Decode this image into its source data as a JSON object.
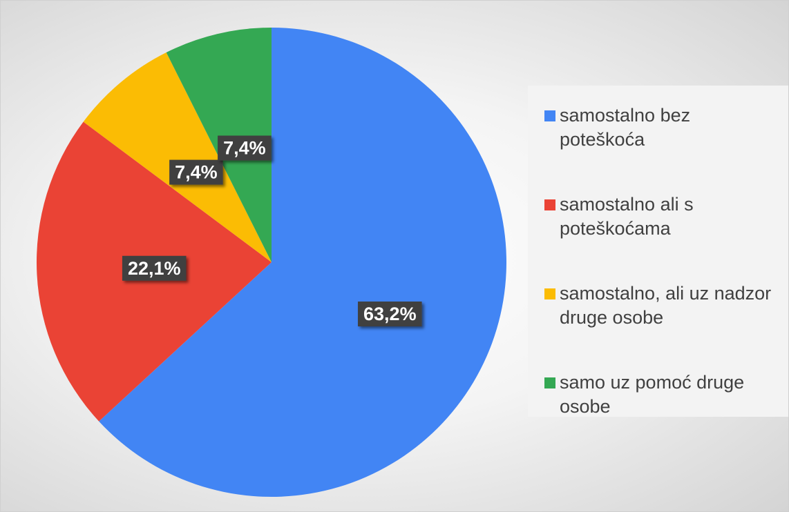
{
  "chart_data": {
    "type": "pie",
    "categories": [
      "samostalno bez poteškoća",
      "samostalno ali s poteškoćama",
      "samostalno, ali uz nadzor druge osobe",
      "samo uz pomoć druge osobe"
    ],
    "values": [
      63.2,
      22.1,
      7.4,
      7.4
    ],
    "value_labels": [
      "63,2%",
      "22,1%",
      "7,4%",
      "7,4%"
    ],
    "colors": [
      "#4285f4",
      "#ea4335",
      "#fbbc04",
      "#34a853"
    ],
    "legend": "right"
  }
}
